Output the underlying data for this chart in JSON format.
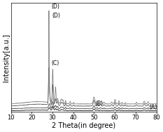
{
  "xlabel": "2 Theta(in degree)",
  "ylabel": "Intensity[a.u.]",
  "xlim": [
    10,
    80
  ],
  "background_color": "#ffffff",
  "label_A": "(A)",
  "label_B": "(B)",
  "label_C": "(C)",
  "label_D": "(D)",
  "tick_fontsize": 6,
  "axis_label_fontsize": 7,
  "line_colors": [
    "#000000",
    "#333333",
    "#555555",
    "#777777"
  ],
  "linewidth": 0.55
}
